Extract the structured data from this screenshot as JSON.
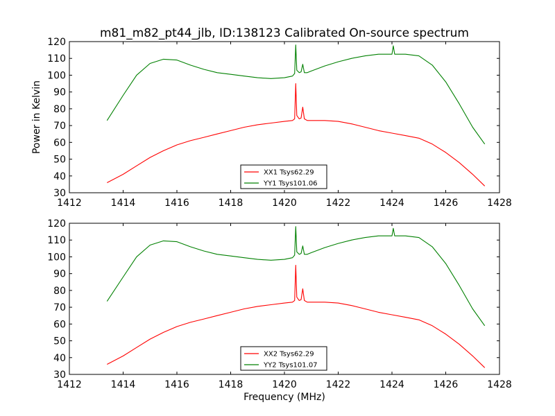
{
  "figure": {
    "title": "m81_m82_pt44_jlb, ID:138123 Calibrated On-source spectrum"
  },
  "chart_data": [
    {
      "type": "line",
      "ylabel": "Power in Kelvin",
      "xlabel": "",
      "xlim": [
        1412,
        1428
      ],
      "ylim": [
        30,
        120
      ],
      "xticks": [
        "1412",
        "1414",
        "1416",
        "1418",
        "1420",
        "1422",
        "1424",
        "1426",
        "1428"
      ],
      "yticks": [
        "30",
        "40",
        "50",
        "60",
        "70",
        "80",
        "90",
        "100",
        "110",
        "120"
      ],
      "grid": false,
      "legend_position": "lower-center",
      "series": [
        {
          "name": "XX1 Tsys62.29",
          "color": "#ff0000",
          "x": [
            1413.4,
            1414.0,
            1414.5,
            1415.0,
            1415.5,
            1416.0,
            1416.5,
            1417.0,
            1417.5,
            1418.0,
            1418.5,
            1419.0,
            1419.5,
            1420.0,
            1420.3,
            1420.38,
            1420.42,
            1420.46,
            1420.55,
            1420.62,
            1420.68,
            1420.74,
            1420.85,
            1421.0,
            1421.5,
            1422.0,
            1422.5,
            1423.0,
            1423.5,
            1424.0,
            1424.5,
            1425.0,
            1425.5,
            1426.0,
            1426.5,
            1427.0,
            1427.45
          ],
          "y": [
            36,
            41,
            46,
            51,
            55,
            58.5,
            61,
            63,
            65,
            67,
            69,
            70.5,
            71.5,
            72.5,
            73,
            74,
            95,
            76,
            74,
            74.5,
            81,
            74,
            73,
            73,
            73,
            72.5,
            71,
            69,
            67,
            65.5,
            64,
            62.5,
            59,
            54,
            48,
            41,
            34
          ]
        },
        {
          "name": "YY1 Tsys101.06",
          "color": "#008000",
          "x": [
            1413.4,
            1414.0,
            1414.5,
            1415.0,
            1415.5,
            1416.0,
            1416.5,
            1417.0,
            1417.5,
            1418.0,
            1418.5,
            1419.0,
            1419.5,
            1420.0,
            1420.3,
            1420.38,
            1420.42,
            1420.46,
            1420.55,
            1420.62,
            1420.68,
            1420.74,
            1420.85,
            1421.0,
            1421.5,
            1422.0,
            1422.5,
            1423.0,
            1423.5,
            1424.0,
            1424.05,
            1424.1,
            1424.5,
            1425.0,
            1425.5,
            1426.0,
            1426.5,
            1427.0,
            1427.45
          ],
          "y": [
            73,
            88,
            100,
            107,
            109.5,
            109,
            106,
            103.5,
            101.5,
            100.5,
            99.5,
            98.5,
            98,
            98.5,
            99.5,
            101,
            118,
            103,
            101.5,
            102,
            106.5,
            101.5,
            101.5,
            102.5,
            105.5,
            108,
            110,
            111.5,
            112.5,
            112.5,
            117.5,
            112.5,
            112.5,
            111.5,
            106,
            96,
            83,
            69,
            59
          ]
        }
      ]
    },
    {
      "type": "line",
      "ylabel": "",
      "xlabel": "Frequency (MHz)",
      "xlim": [
        1412,
        1428
      ],
      "ylim": [
        30,
        120
      ],
      "xticks": [
        "1412",
        "1414",
        "1416",
        "1418",
        "1420",
        "1422",
        "1424",
        "1426",
        "1428"
      ],
      "yticks": [
        "30",
        "40",
        "50",
        "60",
        "70",
        "80",
        "90",
        "100",
        "110",
        "120"
      ],
      "grid": false,
      "legend_position": "lower-center",
      "series": [
        {
          "name": "XX2 Tsys62.29",
          "color": "#ff0000",
          "x": [
            1413.4,
            1414.0,
            1414.5,
            1415.0,
            1415.5,
            1416.0,
            1416.5,
            1417.0,
            1417.5,
            1418.0,
            1418.5,
            1419.0,
            1419.5,
            1420.0,
            1420.3,
            1420.38,
            1420.42,
            1420.46,
            1420.55,
            1420.62,
            1420.68,
            1420.74,
            1420.85,
            1421.0,
            1421.5,
            1422.0,
            1422.5,
            1423.0,
            1423.5,
            1424.0,
            1424.5,
            1425.0,
            1425.5,
            1426.0,
            1426.5,
            1427.0,
            1427.45
          ],
          "y": [
            36,
            41,
            46,
            51,
            55,
            58.5,
            61,
            63,
            65,
            67,
            69,
            70.5,
            71.5,
            72.5,
            73,
            74,
            95,
            76,
            74,
            74.5,
            81,
            74,
            73,
            73,
            73,
            72.5,
            71,
            69,
            67,
            65.5,
            64,
            62.5,
            59,
            54,
            48,
            41,
            34
          ]
        },
        {
          "name": "YY2 Tsys101.07",
          "color": "#008000",
          "x": [
            1413.4,
            1414.0,
            1414.5,
            1415.0,
            1415.5,
            1416.0,
            1416.5,
            1417.0,
            1417.5,
            1418.0,
            1418.5,
            1419.0,
            1419.5,
            1420.0,
            1420.3,
            1420.38,
            1420.42,
            1420.46,
            1420.55,
            1420.62,
            1420.68,
            1420.74,
            1420.85,
            1421.0,
            1421.5,
            1422.0,
            1422.5,
            1423.0,
            1423.5,
            1424.0,
            1424.05,
            1424.1,
            1424.5,
            1425.0,
            1425.5,
            1426.0,
            1426.5,
            1427.0,
            1427.45
          ],
          "y": [
            73.5,
            88,
            100,
            107,
            109.5,
            109,
            106,
            103.5,
            101.5,
            100.5,
            99.5,
            98.5,
            98,
            98.5,
            99.5,
            101,
            118,
            103,
            101.5,
            102,
            106.5,
            101.5,
            101.5,
            102.5,
            105.5,
            108,
            110,
            111.5,
            112.5,
            112.5,
            117,
            112.5,
            112.5,
            111.5,
            106,
            96,
            83,
            69,
            59
          ]
        }
      ]
    }
  ]
}
